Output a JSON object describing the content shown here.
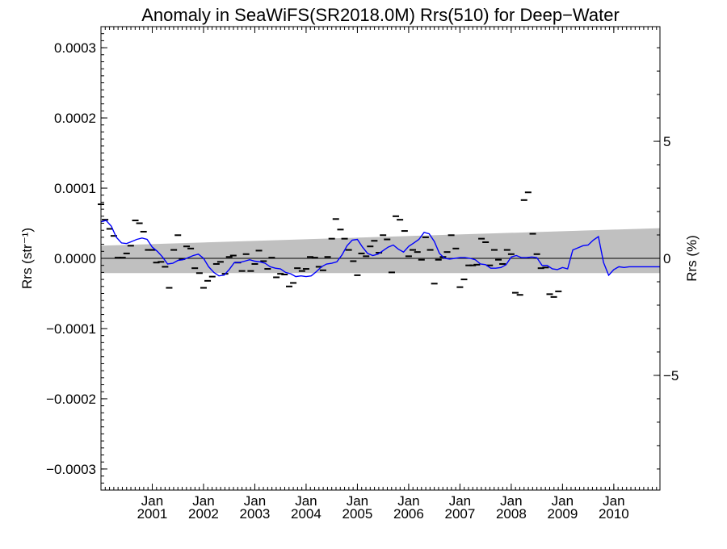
{
  "chart_data": {
    "type": "line",
    "title": "Anomaly in SeaWiFS(SR2018.0M) Rrs(510) for Deep−Water",
    "ylabel": "Rrs (str⁻¹)",
    "y2label": "Rrs (%)",
    "xlabel": "",
    "xlim": [
      2000.0,
      2010.9
    ],
    "ylim": [
      -0.00033,
      0.00033
    ],
    "y2lim": [
      -9.9,
      9.9
    ],
    "grid": false,
    "legend": "none",
    "x_ticks": [
      {
        "x": 2001.0,
        "month": "Jan",
        "year": "2001"
      },
      {
        "x": 2002.0,
        "month": "Jan",
        "year": "2002"
      },
      {
        "x": 2003.0,
        "month": "Jan",
        "year": "2003"
      },
      {
        "x": 2004.0,
        "month": "Jan",
        "year": "2004"
      },
      {
        "x": 2005.0,
        "month": "Jan",
        "year": "2005"
      },
      {
        "x": 2006.0,
        "month": "Jan",
        "year": "2006"
      },
      {
        "x": 2007.0,
        "month": "Jan",
        "year": "2007"
      },
      {
        "x": 2008.0,
        "month": "Jan",
        "year": "2008"
      },
      {
        "x": 2009.0,
        "month": "Jan",
        "year": "2009"
      },
      {
        "x": 2010.0,
        "month": "Jan",
        "year": "2010"
      }
    ],
    "y_ticks": [
      {
        "v": 0.0003,
        "label": "0.0003"
      },
      {
        "v": 0.0002,
        "label": "0.0002"
      },
      {
        "v": 0.0001,
        "label": "0.0001"
      },
      {
        "v": 0.0,
        "label": "0.0000"
      },
      {
        "v": -0.0001,
        "label": "−0.0001"
      },
      {
        "v": -0.0002,
        "label": "−0.0002"
      },
      {
        "v": -0.0003,
        "label": "−0.0003"
      }
    ],
    "y2_ticks": [
      {
        "v": 5,
        "label": "5"
      },
      {
        "v": 0,
        "label": "0"
      },
      {
        "v": -5,
        "label": "−5"
      }
    ],
    "uncertainty_band": {
      "color": "#c0c0c0",
      "x": [
        2000.0,
        2010.9
      ],
      "upper": [
        1.8e-05,
        4.3e-05
      ],
      "lower": [
        -2.1e-05,
        -2.1e-05
      ]
    },
    "zero_line": 0.0,
    "series": [
      {
        "mark": "dash",
        "color": "#000000",
        "x": [
          2000.0,
          2000.08,
          2000.17,
          2000.25,
          2000.33,
          2000.42,
          2000.5,
          2000.58,
          2000.67,
          2000.75,
          2000.83,
          2000.92,
          2001.0,
          2001.08,
          2001.17,
          2001.25,
          2001.33,
          2001.42,
          2001.5,
          2001.58,
          2001.67,
          2001.75,
          2001.83,
          2001.92,
          2002.0,
          2002.08,
          2002.17,
          2002.25,
          2002.33,
          2002.42,
          2002.5,
          2002.58,
          2002.67,
          2002.75,
          2002.83,
          2002.92,
          2003.0,
          2003.08,
          2003.17,
          2003.25,
          2003.33,
          2003.42,
          2003.5,
          2003.58,
          2003.67,
          2003.75,
          2003.83,
          2003.92,
          2004.0,
          2004.08,
          2004.17,
          2004.25,
          2004.33,
          2004.42,
          2004.5,
          2004.58,
          2004.67,
          2004.75,
          2004.83,
          2004.92,
          2005.0,
          2005.08,
          2005.17,
          2005.25,
          2005.33,
          2005.42,
          2005.5,
          2005.58,
          2005.67,
          2005.75,
          2005.83,
          2005.92,
          2006.0,
          2006.08,
          2006.17,
          2006.25,
          2006.33,
          2006.42,
          2006.5,
          2006.58,
          2006.67,
          2006.75,
          2006.83,
          2006.92,
          2007.0,
          2007.08,
          2007.17,
          2007.25,
          2007.33,
          2007.42,
          2007.5,
          2007.58,
          2007.67,
          2007.75,
          2007.83,
          2007.92,
          2008.0,
          2008.08,
          2008.17,
          2008.25,
          2008.33,
          2008.42,
          2008.5,
          2008.58,
          2008.67,
          2008.75,
          2008.83,
          2008.92,
          2009.0,
          2009.08,
          2009.17,
          2009.25,
          2009.33,
          2009.42,
          2009.5,
          2009.58,
          2009.67,
          2009.75,
          2009.83,
          2009.92,
          2010.0,
          2010.08,
          2010.17,
          2010.25,
          2010.33,
          2010.42,
          2010.5,
          2010.58,
          2010.67,
          2010.75,
          2010.83
        ],
        "y": [
          7.7e-05,
          5.5e-05,
          4.2e-05,
          3.2e-05,
          1e-06,
          1e-06,
          7e-06,
          1.8e-05,
          5.4e-05,
          5e-05,
          3.8e-05,
          1.2e-05,
          1.2e-05,
          -6e-06,
          -5e-06,
          -1.2e-05,
          -4.2e-05,
          1.2e-05,
          3.3e-05,
          -1e-06,
          1.7e-05,
          1.4e-05,
          -1.4e-05,
          -2.1e-05,
          -4.2e-05,
          -3.2e-05,
          -2.6e-05,
          -8e-06,
          -5e-06,
          -2.2e-05,
          2e-06,
          4e-06,
          -6e-06,
          -1.8e-05,
          6e-06,
          -1.8e-05,
          -8e-06,
          1.1e-05,
          -4e-06,
          -1.5e-05,
          1e-06,
          -2.7e-05,
          -2.2e-05,
          -2.3e-05,
          -4e-05,
          -3.5e-05,
          -1.4e-05,
          -1.8e-05,
          -1.5e-05,
          2e-06,
          1e-06,
          -1.2e-05,
          -1.7e-05,
          2e-06,
          2.8e-05,
          5.6e-05,
          4.1e-05,
          2.8e-05,
          1.2e-05,
          -4e-06,
          -2.4e-05,
          7e-06,
          3e-06,
          1.7e-05,
          2.5e-05,
          8e-06,
          3.3e-05,
          2.7e-05,
          -2e-05,
          6e-05,
          5.5e-05,
          3.9e-05,
          3e-06,
          1.2e-05,
          9e-06,
          -2e-06,
          3e-05,
          1.2e-05,
          -3.6e-05,
          -2e-06,
          2e-06,
          9e-06,
          3.3e-05,
          1.4e-05,
          -4.1e-05,
          -3e-05,
          -1e-05,
          -1e-05,
          -9e-06,
          2.8e-05,
          2.3e-05,
          -1e-05,
          1.2e-05,
          -2e-06,
          -8e-06,
          1.2e-05,
          6e-06,
          -4.9e-05,
          -5.2e-05,
          8.3e-05,
          9.4e-05,
          3.5e-05,
          6e-06,
          -1.4e-05,
          -1.3e-05,
          -5.1e-05,
          -5.5e-05,
          -4.7e-05,
          0.0,
          0.0,
          0.0,
          0.0,
          0.0,
          0.0,
          0.0,
          0.0,
          0.0,
          0.0,
          0.0,
          0.0,
          0.0,
          0.0,
          0.0,
          0.0,
          0.0,
          0.0,
          0.0,
          0.0,
          0.0,
          0.0,
          0.0
        ]
      },
      {
        "mark": "line",
        "color": "#0000ff",
        "x": [
          2000.0,
          2000.1,
          2000.2,
          2000.3,
          2000.4,
          2000.5,
          2000.6,
          2000.7,
          2000.8,
          2000.9,
          2001.0,
          2001.1,
          2001.2,
          2001.3,
          2001.4,
          2001.5,
          2001.6,
          2001.7,
          2001.8,
          2001.9,
          2002.0,
          2002.1,
          2002.2,
          2002.3,
          2002.4,
          2002.5,
          2002.6,
          2002.7,
          2002.8,
          2002.9,
          2003.0,
          2003.1,
          2003.2,
          2003.3,
          2003.4,
          2003.5,
          2003.6,
          2003.7,
          2003.8,
          2003.9,
          2004.0,
          2004.1,
          2004.2,
          2004.3,
          2004.4,
          2004.5,
          2004.6,
          2004.7,
          2004.8,
          2004.9,
          2005.0,
          2005.1,
          2005.2,
          2005.3,
          2005.4,
          2005.5,
          2005.6,
          2005.7,
          2005.8,
          2005.9,
          2006.0,
          2006.1,
          2006.2,
          2006.3,
          2006.4,
          2006.5,
          2006.6,
          2006.7,
          2006.8,
          2006.9,
          2007.0,
          2007.1,
          2007.2,
          2007.3,
          2007.4,
          2007.5,
          2007.6,
          2007.7,
          2007.8,
          2007.9,
          2008.0,
          2008.1,
          2008.2,
          2008.3,
          2008.4,
          2008.5,
          2008.6,
          2008.7,
          2008.8,
          2008.9,
          2009.0,
          2009.1,
          2009.2,
          2009.3,
          2009.4,
          2009.5,
          2009.6,
          2009.7,
          2009.8,
          2009.9,
          2010.0,
          2010.1,
          2010.2,
          2010.3,
          2010.4,
          2010.5,
          2010.6,
          2010.7,
          2010.8,
          2010.9
        ],
        "y": [
          5.2e-05,
          5.4e-05,
          4.6e-05,
          3e-05,
          2.2e-05,
          2.1e-05,
          2.4e-05,
          2.7e-05,
          2.9e-05,
          2.7e-05,
          1.6e-05,
          1e-05,
          2e-06,
          -8e-06,
          -7e-06,
          -3e-06,
          -2e-06,
          1e-06,
          4e-06,
          6e-06,
          0.0,
          -1.2e-05,
          -2e-05,
          -2.5e-05,
          -2.4e-05,
          -1.6e-05,
          -6e-06,
          -6e-06,
          -4e-06,
          -2e-06,
          -4e-06,
          -5e-06,
          -7e-06,
          -1.2e-05,
          -1.4e-05,
          -1.5e-05,
          -2e-05,
          -2.2e-05,
          -2.6e-05,
          -2.5e-05,
          -2.6e-05,
          -2.5e-05,
          -1.9e-05,
          -1.2e-05,
          -8e-06,
          -7e-06,
          -5e-06,
          5e-06,
          1.8e-05,
          2.6e-05,
          2.7e-05,
          1.6e-05,
          7e-06,
          4e-06,
          6e-06,
          1.1e-05,
          1.6e-05,
          1.9e-05,
          1.3e-05,
          9e-06,
          1.7e-05,
          2.2e-05,
          2.7e-05,
          3.7e-05,
          3.5e-05,
          2.4e-05,
          7e-06,
          0.0,
          -1e-06,
          0.0,
          1e-06,
          1e-06,
          0.0,
          -2e-06,
          -8e-06,
          -9e-06,
          -1.4e-05,
          -1.4e-05,
          -1.3e-05,
          -9e-06,
          2e-06,
          4e-06,
          1e-06,
          1e-06,
          2e-06,
          1e-06,
          -1e-05,
          -1e-05,
          -1.5e-05,
          -1.6e-05,
          -1.3e-05,
          -1.5e-05,
          1.2e-05,
          1.5e-05,
          1.8e-05,
          1.9e-05,
          2.6e-05,
          3.1e-05,
          -6e-06,
          -2.4e-05,
          -1.6e-05,
          -1.2e-05,
          -1.3e-05,
          -1.2e-05,
          -1.2e-05,
          -1.2e-05,
          -1.2e-05,
          -1.2e-05,
          -1.2e-05,
          -1.2e-05
        ]
      }
    ]
  }
}
